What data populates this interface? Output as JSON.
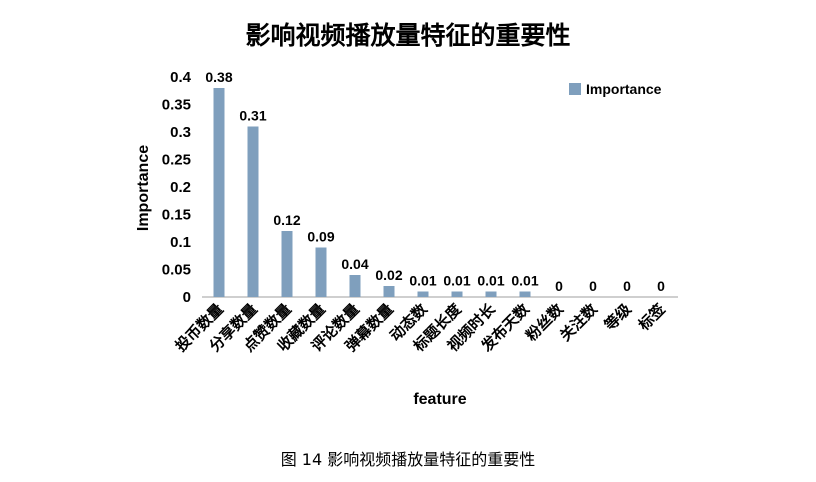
{
  "chart_data": {
    "type": "bar",
    "title": "影响视频播放量特征的重要性",
    "xlabel": "feature",
    "ylabel": "Importance",
    "ylim": [
      0,
      0.4
    ],
    "yticks": [
      "0",
      "0.05",
      "0.1",
      "0.15",
      "0.2",
      "0.25",
      "0.3",
      "0.35",
      "0.4"
    ],
    "categories": [
      "投币数量",
      "分享数量",
      "点赞数量",
      "收藏数量",
      "评论数量",
      "弹幕数量",
      "动态数",
      "标题长度",
      "视频时长",
      "发布天数",
      "粉丝数",
      "关注数",
      "等级",
      "标签"
    ],
    "series": [
      {
        "name": "Importance",
        "values": [
          0.38,
          0.31,
          0.12,
          0.09,
          0.04,
          0.02,
          0.01,
          0.01,
          0.01,
          0.01,
          0,
          0,
          0,
          0
        ],
        "labels": [
          "0.38",
          "0.31",
          "0.12",
          "0.09",
          "0.04",
          "0.02",
          "0.01",
          "0.01",
          "0.01",
          "0.01",
          "0",
          "0",
          "0",
          "0"
        ],
        "color": "#7f9fbd"
      }
    ],
    "legend": "top-right",
    "grid": false
  },
  "caption": "图  14  影响视频播放量特征的重要性"
}
